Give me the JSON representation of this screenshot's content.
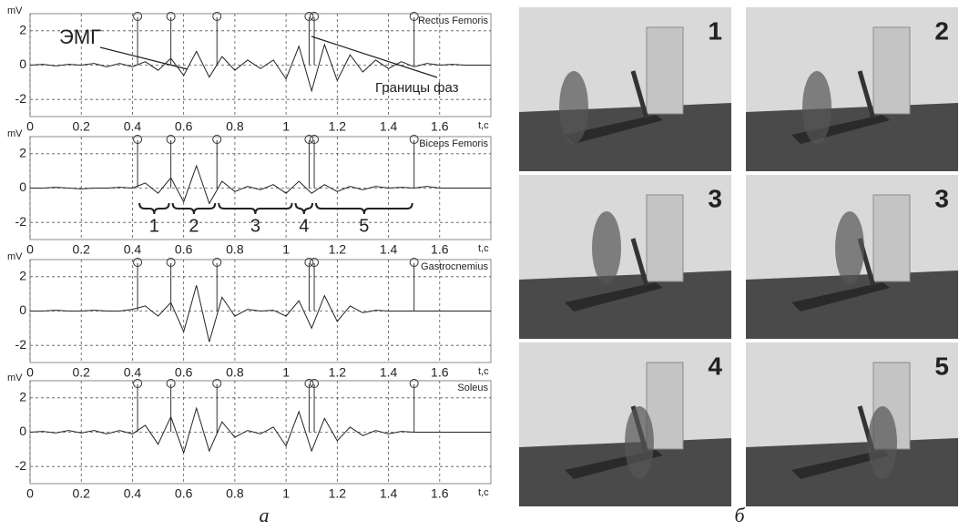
{
  "chart_data": [
    {
      "type": "line",
      "y_label": "mV",
      "x_label": "t,c",
      "xlim": [
        0,
        1.8
      ],
      "ylim": [
        -3,
        3
      ],
      "xticks": [
        0,
        0.2,
        0.4,
        0.6,
        0.8,
        1,
        1.2,
        1.4,
        1.6
      ],
      "yticks": [
        -2,
        0,
        2
      ],
      "grid": true,
      "x": [
        0,
        0.05,
        0.1,
        0.15,
        0.2,
        0.25,
        0.3,
        0.35,
        0.4,
        0.45,
        0.5,
        0.55,
        0.6,
        0.65,
        0.7,
        0.75,
        0.8,
        0.85,
        0.9,
        0.95,
        1,
        1.05,
        1.1,
        1.15,
        1.2,
        1.25,
        1.3,
        1.35,
        1.4,
        1.45,
        1.5,
        1.55,
        1.6,
        1.65,
        1.7,
        1.75,
        1.8
      ],
      "series": [
        {
          "name": "Rectus Femoris",
          "color": "#222222",
          "values": [
            0,
            0.05,
            -0.05,
            0.05,
            0,
            0.1,
            -0.1,
            0.1,
            -0.1,
            0.2,
            -0.3,
            0.4,
            -0.6,
            0.8,
            -0.7,
            0.5,
            -0.3,
            0.3,
            -0.2,
            0.3,
            -0.8,
            1.1,
            -1.5,
            1.2,
            -0.9,
            0.6,
            -0.4,
            0.3,
            -0.2,
            0.2,
            -0.1,
            0.1,
            0,
            0.05,
            0,
            0,
            0
          ]
        }
      ],
      "phase_boundaries": [
        0.42,
        0.55,
        0.73,
        1.09,
        1.11,
        1.5
      ],
      "annotations": [
        "ЭМГ",
        "Границы фаз"
      ]
    },
    {
      "type": "line",
      "y_label": "mV",
      "x_label": "t,c",
      "xlim": [
        0,
        1.8
      ],
      "ylim": [
        -3,
        3
      ],
      "xticks": [
        0,
        0.2,
        0.4,
        0.6,
        0.8,
        1,
        1.2,
        1.4,
        1.6
      ],
      "yticks": [
        -2,
        0,
        2
      ],
      "grid": true,
      "x": [
        0,
        0.05,
        0.1,
        0.15,
        0.2,
        0.25,
        0.3,
        0.35,
        0.4,
        0.45,
        0.5,
        0.55,
        0.6,
        0.65,
        0.7,
        0.75,
        0.8,
        0.85,
        0.9,
        0.95,
        1,
        1.05,
        1.1,
        1.15,
        1.2,
        1.25,
        1.3,
        1.35,
        1.4,
        1.45,
        1.5,
        1.55,
        1.6,
        1.65,
        1.7,
        1.75,
        1.8
      ],
      "series": [
        {
          "name": "Biceps Femoris",
          "color": "#222222",
          "values": [
            0,
            0,
            0.05,
            0,
            -0.05,
            0,
            0,
            0.05,
            0,
            0.3,
            -0.3,
            0.6,
            -0.8,
            1.3,
            -0.9,
            0.4,
            -0.2,
            0.1,
            -0.1,
            0.2,
            -0.3,
            0.4,
            -0.3,
            0.2,
            -0.2,
            0.1,
            -0.1,
            0.1,
            0,
            0.05,
            0,
            0.1,
            0,
            0,
            0,
            0,
            0
          ]
        }
      ],
      "phase_boundaries": [
        0.42,
        0.55,
        0.73,
        1.09,
        1.11,
        1.5
      ],
      "phase_labels": [
        "1",
        "2",
        "3",
        "4",
        "5"
      ]
    },
    {
      "type": "line",
      "y_label": "mV",
      "x_label": "t,c",
      "xlim": [
        0,
        1.8
      ],
      "ylim": [
        -3,
        3
      ],
      "xticks": [
        0,
        0.2,
        0.4,
        0.6,
        0.8,
        1,
        1.2,
        1.4,
        1.6
      ],
      "yticks": [
        -2,
        0,
        2
      ],
      "grid": true,
      "x": [
        0,
        0.05,
        0.1,
        0.15,
        0.2,
        0.25,
        0.3,
        0.35,
        0.4,
        0.45,
        0.5,
        0.55,
        0.6,
        0.65,
        0.7,
        0.75,
        0.8,
        0.85,
        0.9,
        0.95,
        1,
        1.05,
        1.1,
        1.15,
        1.2,
        1.25,
        1.3,
        1.35,
        1.4,
        1.45,
        1.5,
        1.55,
        1.6,
        1.65,
        1.7,
        1.75,
        1.8
      ],
      "series": [
        {
          "name": "Gastrocnemius",
          "color": "#222222",
          "values": [
            0,
            0,
            0.05,
            0,
            0,
            0.05,
            0,
            0,
            0.1,
            0.3,
            -0.3,
            0.5,
            -1.2,
            1.5,
            -1.8,
            0.8,
            -0.3,
            0.1,
            0,
            0.05,
            -0.3,
            0.6,
            -1,
            0.9,
            -0.6,
            0.3,
            -0.1,
            0.05,
            0,
            0,
            0,
            0,
            0,
            0,
            0,
            0,
            0
          ]
        }
      ],
      "phase_boundaries": [
        0.42,
        0.55,
        0.73,
        1.09,
        1.11,
        1.5
      ]
    },
    {
      "type": "line",
      "y_label": "mV",
      "x_label": "t,c",
      "xlim": [
        0,
        1.8
      ],
      "ylim": [
        -3,
        3
      ],
      "xticks": [
        0,
        0.2,
        0.4,
        0.6,
        0.8,
        1,
        1.2,
        1.4,
        1.6
      ],
      "yticks": [
        -2,
        0,
        2
      ],
      "grid": true,
      "x": [
        0,
        0.05,
        0.1,
        0.15,
        0.2,
        0.25,
        0.3,
        0.35,
        0.4,
        0.45,
        0.5,
        0.55,
        0.6,
        0.65,
        0.7,
        0.75,
        0.8,
        0.85,
        0.9,
        0.95,
        1,
        1.05,
        1.1,
        1.15,
        1.2,
        1.25,
        1.3,
        1.35,
        1.4,
        1.45,
        1.5,
        1.55,
        1.6,
        1.65,
        1.7,
        1.75,
        1.8
      ],
      "series": [
        {
          "name": "Soleus",
          "color": "#222222",
          "values": [
            0,
            0.05,
            -0.05,
            0.1,
            -0.05,
            0.1,
            -0.1,
            0.1,
            -0.1,
            0.4,
            -0.7,
            0.9,
            -1.2,
            1.4,
            -1.1,
            0.6,
            -0.3,
            0.1,
            -0.1,
            0.3,
            -0.8,
            1.2,
            -1.1,
            0.8,
            -0.5,
            0.3,
            -0.2,
            0.1,
            -0.1,
            0.05,
            0,
            0,
            0,
            0,
            0,
            0,
            0
          ]
        }
      ],
      "phase_boundaries": [
        0.42,
        0.55,
        0.73,
        1.09,
        1.11,
        1.5
      ]
    }
  ],
  "figure": {
    "panel_a_caption": "а",
    "panel_b_caption": "б",
    "photos": [
      {
        "label": "1"
      },
      {
        "label": "2"
      },
      {
        "label": "3"
      },
      {
        "label": "3"
      },
      {
        "label": "4"
      },
      {
        "label": "5"
      }
    ]
  }
}
